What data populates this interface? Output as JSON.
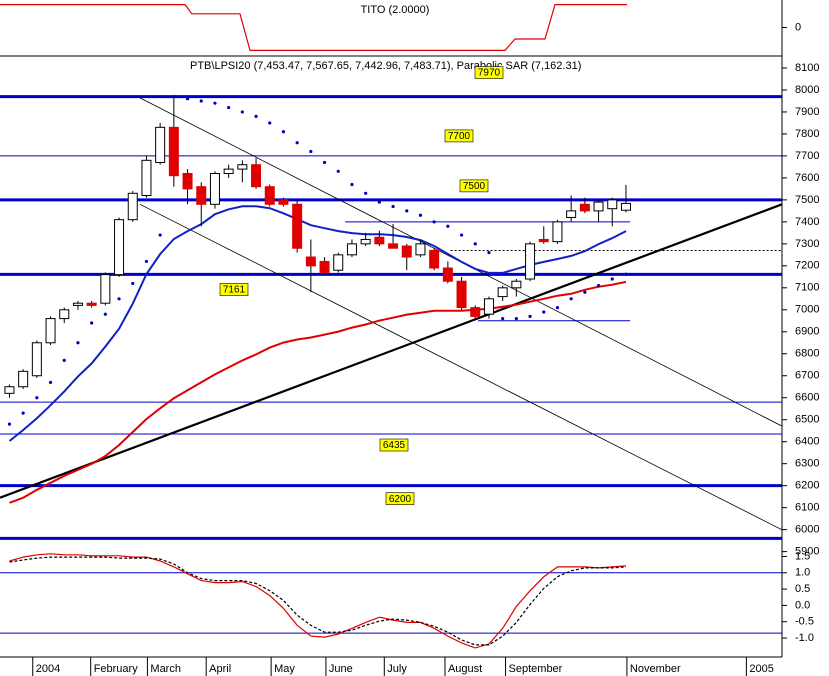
{
  "chart_data": [
    {
      "type": "line",
      "title": "TITO (2.0000)",
      "x": [
        -2.19,
        11.31,
        11.82,
        15.33,
        16.06,
        34.67,
        35.4,
        37.59,
        38.32,
        43.58
      ],
      "series": [
        {
          "color": "#e00000",
          "values": [
            1,
            1,
            0.6,
            0.6,
            -1,
            -1,
            -0.5,
            -0.5,
            1,
            1
          ]
        }
      ],
      "xlim": [
        -2.19,
        54.89
      ],
      "ylim": [
        -1.2,
        1.2
      ],
      "yticks": [
        0
      ]
    },
    {
      "type": "candlestick",
      "title": "PTB\\LPSI20 (7,453.47, 7,567.65, 7,442.96, 7,483.71), Parabolic SAR (7,162.31)",
      "x": [
        -1.5,
        -0.5,
        0.5,
        1.5,
        2.5,
        3.5,
        4.5,
        5.5,
        6.5,
        7.5,
        8.5,
        9.5,
        10.5,
        11.5,
        12.5,
        13.5,
        14.5,
        15.5,
        16.5,
        17.5,
        18.5,
        19.5,
        20.5,
        21.5,
        22.5,
        23.5,
        24.5,
        25.5,
        26.5,
        27.5,
        28.5,
        29.5,
        30.5,
        31.5,
        32.5,
        33.5,
        34.5,
        35.5,
        36.5,
        37.5,
        38.5,
        39.5,
        40.5,
        41.5,
        42.5,
        43.5
      ],
      "open": [
        6620,
        6650,
        6700,
        6850,
        6960,
        7020,
        7030,
        7030,
        7160,
        7410,
        7520,
        7670,
        7830,
        7620,
        7560,
        7480,
        7620,
        7640,
        7660,
        7560,
        7500,
        7480,
        7240,
        7220,
        7180,
        7250,
        7300,
        7330,
        7300,
        7290,
        7250,
        7270,
        7190,
        7130,
        7010,
        6980,
        7060,
        7100,
        7140,
        7320,
        7310,
        7420,
        7480,
        7450,
        7460,
        7453
      ],
      "high": [
        6660,
        6730,
        6860,
        6970,
        7010,
        7040,
        7040,
        7170,
        7420,
        7540,
        7700,
        7850,
        7970,
        7640,
        7580,
        7630,
        7660,
        7680,
        7690,
        7570,
        7510,
        7500,
        7320,
        7240,
        7260,
        7320,
        7350,
        7360,
        7390,
        7300,
        7320,
        7280,
        7220,
        7150,
        7020,
        7060,
        7110,
        7140,
        7310,
        7380,
        7410,
        7520,
        7510,
        7500,
        7510,
        7568
      ],
      "low": [
        6600,
        6640,
        6690,
        6840,
        6940,
        7000,
        7010,
        7020,
        7150,
        7400,
        7510,
        7660,
        7560,
        7480,
        7380,
        7460,
        7600,
        7580,
        7550,
        7470,
        7470,
        7260,
        7080,
        7160,
        7170,
        7240,
        7290,
        7290,
        7280,
        7180,
        7240,
        7180,
        7120,
        7000,
        6960,
        6960,
        7040,
        7060,
        7130,
        7300,
        7300,
        7400,
        7440,
        7400,
        7380,
        7443
      ],
      "close": [
        6650,
        6720,
        6850,
        6960,
        7000,
        7030,
        7020,
        7160,
        7410,
        7530,
        7680,
        7830,
        7610,
        7550,
        7480,
        7620,
        7640,
        7660,
        7560,
        7480,
        7480,
        7280,
        7200,
        7170,
        7250,
        7300,
        7320,
        7300,
        7280,
        7240,
        7300,
        7190,
        7130,
        7010,
        6970,
        7050,
        7100,
        7130,
        7300,
        7310,
        7400,
        7450,
        7450,
        7490,
        7500,
        7484
      ],
      "up_color": "#ffffff",
      "down_color": "#e00000",
      "series": [
        {
          "color": "#1020c8",
          "values": [
            6403,
            6453,
            6507,
            6566,
            6629,
            6697,
            6756,
            6833,
            6914,
            7028,
            7163,
            7254,
            7322,
            7358,
            7390,
            7435,
            7457,
            7471,
            7471,
            7462,
            7439,
            7412,
            7385,
            7371,
            7358,
            7349,
            7344,
            7344,
            7340,
            7331,
            7317,
            7290,
            7254,
            7218,
            7186,
            7168,
            7168,
            7186,
            7204,
            7218,
            7231,
            7245,
            7267,
            7299,
            7326,
            7358
          ]
        },
        {
          "color": "#e00000",
          "values": [
            6122,
            6145,
            6181,
            6213,
            6245,
            6272,
            6299,
            6335,
            6385,
            6444,
            6503,
            6552,
            6598,
            6634,
            6670,
            6706,
            6738,
            6770,
            6797,
            6828,
            6851,
            6865,
            6874,
            6887,
            6901,
            6919,
            6933,
            6951,
            6964,
            6978,
            6987,
            6996,
            6996,
            6996,
            7000,
            7005,
            7014,
            7023,
            7037,
            7050,
            7064,
            7073,
            7091,
            7105,
            7114,
            7127
          ]
        }
      ],
      "sar": {
        "color": "#0000c0",
        "values": [
          6480,
          6530,
          6600,
          6670,
          6770,
          6850,
          6940,
          6980,
          7050,
          7120,
          7220,
          7340,
          7970,
          7960,
          7950,
          7940,
          7920,
          7900,
          7880,
          7850,
          7810,
          7760,
          7720,
          7670,
          7630,
          7570,
          7530,
          7490,
          7470,
          7450,
          7430,
          7400,
          7380,
          7340,
          7300,
          7260,
          6960,
          6960,
          6970,
          6990,
          7010,
          7050,
          7080,
          7110,
          7140,
          7162
        ]
      },
      "level_color": "#0000cc",
      "label_color": "#ffff00",
      "levels": [
        7970,
        7700,
        7500,
        7161,
        6435,
        6200
      ],
      "level_weights": [
        "bold",
        "thin",
        "bold",
        "bold",
        "thin",
        "bold"
      ],
      "support_lines": [
        {
          "value": 6580,
          "weight": "thin"
        },
        {
          "value": 5960,
          "weight": "bold"
        },
        {
          "value": 7400,
          "weight": "thin",
          "x": [
            23,
            43.8
          ]
        },
        {
          "value": 6950,
          "weight": "thin",
          "x": [
            32.7,
            43.8
          ]
        },
        {
          "value": 7270,
          "weight": "dotted",
          "x": [
            30.7,
            54.89
          ]
        }
      ],
      "trendlines": [
        {
          "x": [
            -2.19,
            54.89
          ],
          "y": [
            6145,
            7480
          ],
          "weight": "bold"
        },
        {
          "x": [
            8.03,
            54.89
          ],
          "y": [
            7964,
            6471
          ],
          "weight": "thin"
        },
        {
          "x": [
            8.03,
            54.89
          ],
          "y": [
            7480,
            5999
          ],
          "weight": "thin"
        }
      ],
      "xlim": [
        -2.19,
        54.89
      ],
      "ylim": [
        5880,
        8150
      ],
      "yticks": [
        5900,
        6000,
        6100,
        6200,
        6300,
        6400,
        6500,
        6600,
        6700,
        6800,
        6900,
        7000,
        7100,
        7200,
        7300,
        7400,
        7500,
        7600,
        7700,
        7800,
        7900,
        8000,
        8100
      ]
    },
    {
      "type": "line",
      "x": [
        -1.5,
        -0.5,
        0.5,
        1.5,
        2.5,
        3.5,
        4.5,
        5.5,
        6.5,
        7.5,
        8.5,
        9.5,
        10.5,
        11.5,
        12.5,
        13.5,
        14.5,
        15.5,
        16.5,
        17.5,
        18.5,
        19.5,
        20.5,
        21.5,
        22.5,
        23.5,
        24.5,
        25.5,
        26.5,
        27.5,
        28.5,
        29.5,
        30.5,
        31.5,
        32.5,
        33.5,
        34.5,
        35.5,
        36.5,
        37.5,
        38.5,
        39.5,
        40.5,
        41.5,
        42.5,
        43.5
      ],
      "series": [
        {
          "color": "#e00000",
          "values": [
            1.36,
            1.48,
            1.55,
            1.58,
            1.55,
            1.55,
            1.52,
            1.52,
            1.52,
            1.48,
            1.48,
            1.36,
            1.18,
            0.97,
            0.76,
            0.7,
            0.7,
            0.73,
            0.58,
            0.3,
            -0.09,
            -0.61,
            -0.94,
            -0.97,
            -0.88,
            -0.7,
            -0.52,
            -0.36,
            -0.45,
            -0.52,
            -0.52,
            -0.7,
            -0.94,
            -1.15,
            -1.3,
            -1.18,
            -0.7,
            -0.03,
            0.45,
            0.88,
            1.18,
            1.18,
            1.18,
            1.15,
            1.18,
            1.21
          ]
        },
        {
          "color": "#000000",
          "dash": true,
          "values": [
            1.33,
            1.39,
            1.45,
            1.48,
            1.48,
            1.48,
            1.48,
            1.48,
            1.45,
            1.45,
            1.45,
            1.42,
            1.27,
            1,
            0.82,
            0.76,
            0.76,
            0.76,
            0.67,
            0.45,
            0.15,
            -0.3,
            -0.61,
            -0.82,
            -0.82,
            -0.76,
            -0.61,
            -0.48,
            -0.42,
            -0.45,
            -0.52,
            -0.64,
            -0.82,
            -1.06,
            -1.21,
            -1.21,
            -0.94,
            -0.52,
            0.03,
            0.52,
            0.88,
            1.06,
            1.15,
            1.15,
            1.15,
            1.18
          ]
        }
      ],
      "bands": [
        1,
        -0.85
      ],
      "band_color": "#0000cc",
      "xlim": [
        -2.19,
        54.89
      ],
      "ylim": [
        -1.58,
        1.82
      ],
      "yticks": [
        1.5,
        {
          "value": 1,
          "label": "1.0"
        },
        0.5,
        {
          "value": 0,
          "label": "0.0"
        },
        -0.5,
        {
          "value": -1,
          "label": "-1.0"
        }
      ],
      "xticks": [
        {
          "value": 0.2,
          "label": "2004"
        },
        {
          "value": 4.43,
          "label": "February"
        },
        {
          "value": 8.57,
          "label": "March"
        },
        {
          "value": 12.86,
          "label": "April"
        },
        {
          "value": 17.6,
          "label": "May"
        },
        {
          "value": 21.6,
          "label": "June"
        },
        {
          "value": 25.86,
          "label": "July"
        },
        {
          "value": 30.29,
          "label": "August"
        },
        {
          "value": 34.71,
          "label": "September"
        },
        {
          "value": 43.57,
          "label": "November"
        },
        {
          "value": 52.29,
          "label": "2005"
        }
      ]
    }
  ]
}
